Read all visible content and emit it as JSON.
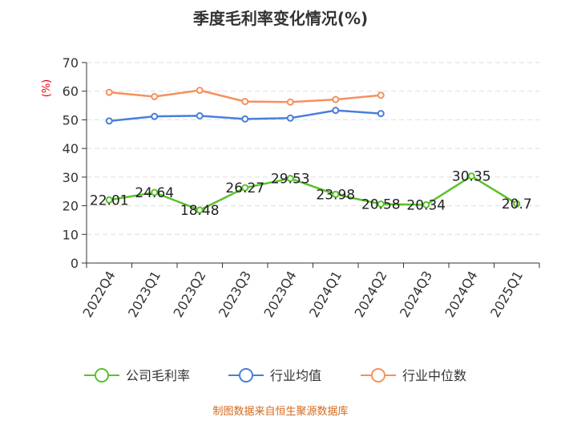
{
  "chart_data": {
    "type": "line",
    "title": "季度毛利率变化情况(%)",
    "ylabel": "(%)",
    "ylim": [
      0,
      70
    ],
    "yticks": [
      0,
      10,
      20,
      30,
      40,
      50,
      60,
      70
    ],
    "grid": "horizontal-dashed",
    "legend_position": "bottom",
    "categories": [
      "2022Q4",
      "2023Q1",
      "2023Q2",
      "2023Q3",
      "2023Q4",
      "2024Q1",
      "2024Q2",
      "2024Q3",
      "2024Q4",
      "2025Q1"
    ],
    "series": [
      {
        "name": "公司毛利率",
        "color": "#5ac22b",
        "show_labels": true,
        "values": [
          22.01,
          24.64,
          18.48,
          26.27,
          29.53,
          23.98,
          20.58,
          20.34,
          30.35,
          20.7
        ],
        "labels": [
          "22.01",
          "24.64",
          "18.48",
          "26.27",
          "29.53",
          "23.98",
          "20.58",
          "20.34",
          "30.35",
          "20.7"
        ]
      },
      {
        "name": "行业均值",
        "color": "#4a7fd9",
        "show_labels": false,
        "values": [
          49.6,
          51.2,
          51.4,
          50.3,
          50.6,
          53.3,
          52.2,
          null,
          null,
          null
        ]
      },
      {
        "name": "行业中位数",
        "color": "#f5915e",
        "show_labels": false,
        "values": [
          59.6,
          58.1,
          60.3,
          56.4,
          56.2,
          57.1,
          58.6,
          null,
          null,
          null
        ]
      }
    ]
  },
  "source_note": "制图数据来自恒生聚源数据库"
}
